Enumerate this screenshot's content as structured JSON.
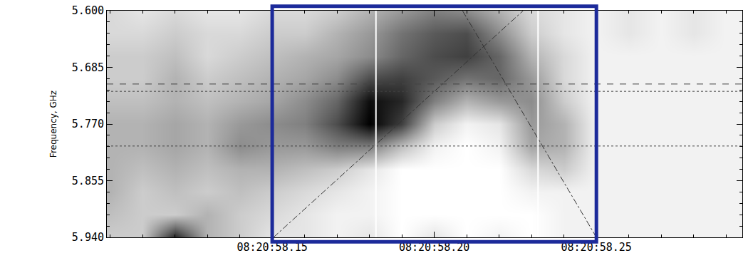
{
  "chart_data": {
    "type": "heatmap",
    "y_label": "Frequency, GHz",
    "xlim": [
      58.099,
      58.295
    ],
    "ylim": [
      5.94,
      5.6
    ],
    "xticks": [
      {
        "value": 58.15,
        "label": "08:20:58.15"
      },
      {
        "value": 58.2,
        "label": "08:20:58.20"
      },
      {
        "value": 58.25,
        "label": "08:20:58.25"
      }
    ],
    "yticks": [
      {
        "value": 5.6,
        "label": "5.600"
      },
      {
        "value": 5.685,
        "label": "5.685"
      },
      {
        "value": 5.77,
        "label": "5.770"
      },
      {
        "value": 5.855,
        "label": "5.855"
      },
      {
        "value": 5.94,
        "label": "5.940"
      }
    ],
    "xminorticks": [
      58.1,
      58.11,
      58.12,
      58.13,
      58.14,
      58.16,
      58.17,
      58.18,
      58.19,
      58.21,
      58.22,
      58.23,
      58.24,
      58.26,
      58.27,
      58.28,
      58.29
    ],
    "yminorticks": [
      5.617,
      5.634,
      5.651,
      5.668,
      5.702,
      5.719,
      5.736,
      5.753,
      5.787,
      5.804,
      5.821,
      5.838,
      5.872,
      5.889,
      5.906,
      5.923
    ],
    "x": [
      58.1,
      58.11,
      58.12,
      58.13,
      58.14,
      58.15,
      58.16,
      58.17,
      58.18,
      58.19,
      58.2,
      58.21,
      58.22,
      58.23,
      58.24,
      58.25,
      58.26,
      58.27,
      58.28,
      58.29
    ],
    "y": [
      5.6,
      5.634,
      5.668,
      5.702,
      5.736,
      5.77,
      5.804,
      5.838,
      5.872,
      5.906,
      5.94
    ],
    "z": [
      [
        0.15,
        0.1,
        0.15,
        0.1,
        0.1,
        0.15,
        0.15,
        0.2,
        0.3,
        0.4,
        0.5,
        0.45,
        0.3,
        0.15,
        0.1,
        0.05,
        0.1,
        0.05,
        0.1,
        0.05
      ],
      [
        0.15,
        0.15,
        0.2,
        0.15,
        0.15,
        0.2,
        0.2,
        0.3,
        0.4,
        0.55,
        0.65,
        0.7,
        0.45,
        0.2,
        0.1,
        0.05,
        0.1,
        0.05,
        0.1,
        0.05
      ],
      [
        0.2,
        0.2,
        0.25,
        0.15,
        0.2,
        0.25,
        0.3,
        0.35,
        0.45,
        0.6,
        0.7,
        0.75,
        0.6,
        0.3,
        0.15,
        0.05,
        0.05,
        0.05,
        0.05,
        0.05
      ],
      [
        0.2,
        0.2,
        0.3,
        0.2,
        0.25,
        0.3,
        0.35,
        0.45,
        0.7,
        0.75,
        0.65,
        0.55,
        0.6,
        0.4,
        0.15,
        0.05,
        0.05,
        0.05,
        0.05,
        0.05
      ],
      [
        0.25,
        0.25,
        0.3,
        0.25,
        0.3,
        0.35,
        0.45,
        0.6,
        0.95,
        0.85,
        0.5,
        0.3,
        0.4,
        0.45,
        0.2,
        0.05,
        0.05,
        0.05,
        0.05,
        0.05
      ],
      [
        0.3,
        0.3,
        0.35,
        0.3,
        0.4,
        0.45,
        0.5,
        0.7,
        1.0,
        0.75,
        0.2,
        0.05,
        0.1,
        0.4,
        0.3,
        0.05,
        0.05,
        0.05,
        0.05,
        0.05
      ],
      [
        0.3,
        0.3,
        0.35,
        0.3,
        0.45,
        0.4,
        0.4,
        0.5,
        0.5,
        0.25,
        0.05,
        0.0,
        0.05,
        0.35,
        0.3,
        0.05,
        0.05,
        0.05,
        0.05,
        0.05
      ],
      [
        0.3,
        0.25,
        0.3,
        0.25,
        0.3,
        0.3,
        0.25,
        0.2,
        0.1,
        0.0,
        0.0,
        0.0,
        0.0,
        0.15,
        0.2,
        0.05,
        0.05,
        0.05,
        0.05,
        0.05
      ],
      [
        0.3,
        0.2,
        0.25,
        0.2,
        0.25,
        0.2,
        0.15,
        0.1,
        0.05,
        0.0,
        0.0,
        0.0,
        0.0,
        0.05,
        0.05,
        0.05,
        0.05,
        0.05,
        0.05,
        0.05
      ],
      [
        0.25,
        0.2,
        0.2,
        0.3,
        0.2,
        0.15,
        0.1,
        0.05,
        0.05,
        0.0,
        0.0,
        0.0,
        0.0,
        0.0,
        0.05,
        0.05,
        0.05,
        0.05,
        0.05,
        0.05
      ],
      [
        0.2,
        0.2,
        0.85,
        0.3,
        0.2,
        0.1,
        0.1,
        0.05,
        0.1,
        0.0,
        0.1,
        0.0,
        0.05,
        0.0,
        0.05,
        0.05,
        0.05,
        0.05,
        0.05,
        0.05
      ]
    ],
    "zlim": [
      0,
      1
    ],
    "hlines": [
      {
        "y": 5.71,
        "line_style": "dashed"
      },
      {
        "y": 5.721,
        "line_style": "dotted"
      },
      {
        "y": 5.803,
        "line_style": "dotted"
      }
    ],
    "vlines": [
      {
        "x": 58.182,
        "color": "#ffffff"
      },
      {
        "x": 58.232,
        "color": "#ffffff"
      }
    ],
    "diagonals": [
      {
        "x": [
          58.1504,
          58.2274
        ],
        "y": [
          5.94,
          5.6
        ],
        "line_style": "dashdot"
      },
      {
        "x": [
          58.25,
          58.2087
        ],
        "y": [
          5.94,
          5.6
        ],
        "line_style": "dashdot"
      }
    ],
    "box": {
      "x": [
        58.15,
        58.25
      ],
      "color": "#1c2a9a"
    }
  }
}
